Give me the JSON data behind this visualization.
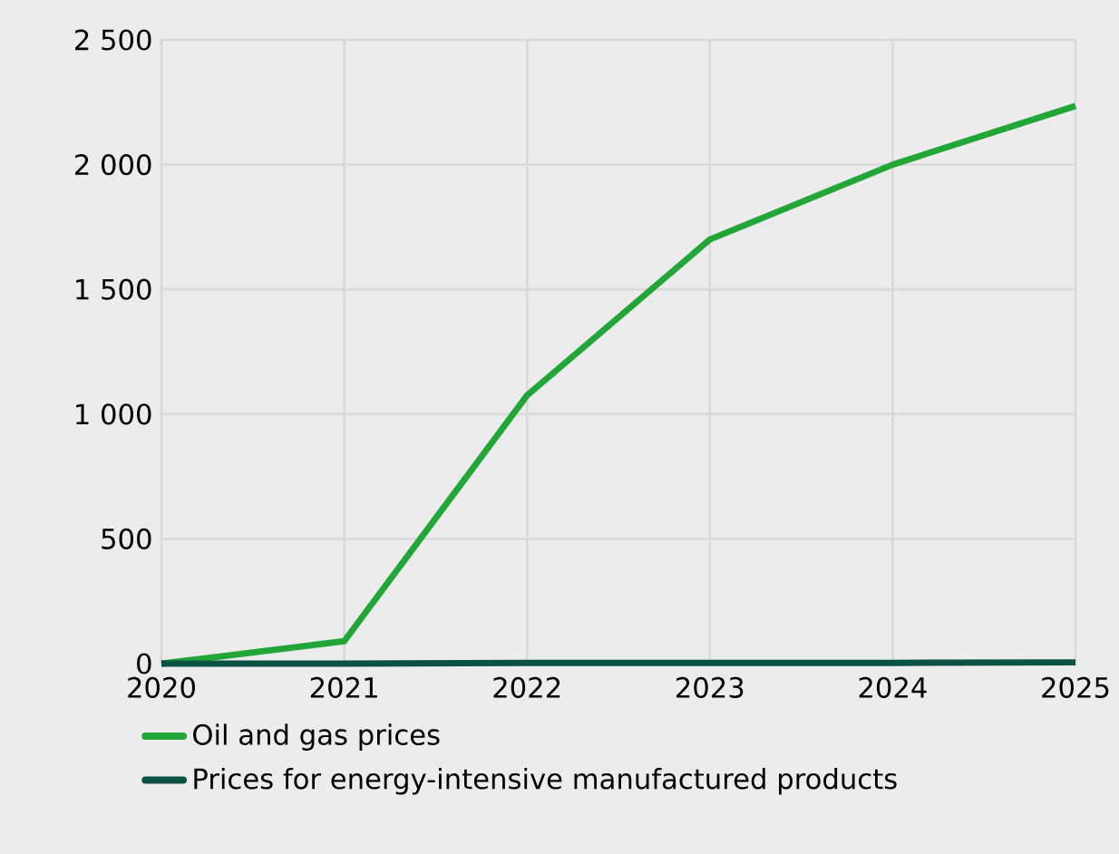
{
  "chart_data": {
    "type": "line",
    "x": [
      2020,
      2021,
      2022,
      2023,
      2024,
      2025
    ],
    "xlim": [
      2020,
      2025
    ],
    "xticks": [
      2020,
      2021,
      2022,
      2023,
      2024,
      2025
    ],
    "ylim": [
      0,
      2500
    ],
    "yticks": [
      {
        "value": 0,
        "label": "0"
      },
      {
        "value": 500,
        "label": "500"
      },
      {
        "value": 1000,
        "label": "1 000"
      },
      {
        "value": 1500,
        "label": "1 500"
      },
      {
        "value": 2000,
        "label": "2 000"
      },
      {
        "value": 2500,
        "label": "2 500"
      }
    ],
    "grid": true,
    "legend": "bottom",
    "line_style": "solid",
    "marker": "none",
    "series": [
      {
        "name": "Oil and gas prices",
        "color": "#21a637",
        "values": [
          0,
          90,
          1075,
          1700,
          2000,
          2235
        ]
      },
      {
        "name": "Prices for energy-intensive manufactured products",
        "color": "#0a5244",
        "values": [
          0,
          0,
          3,
          3,
          3,
          5
        ]
      }
    ]
  }
}
